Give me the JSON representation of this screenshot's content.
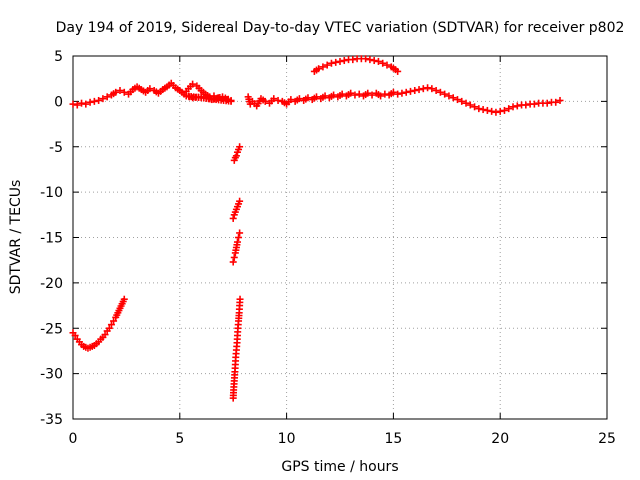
{
  "chart_data": {
    "type": "scatter",
    "title": "Day 194 of 2019, Sidereal Day-to-day VTEC variation (SDTVAR) for receiver p802",
    "xlabel": "GPS time / hours",
    "ylabel": "SDTVAR / TECUs",
    "xlim": [
      0,
      25
    ],
    "ylim": [
      -35,
      5
    ],
    "xticks": [
      0,
      5,
      10,
      15,
      20,
      25
    ],
    "yticks": [
      5,
      0,
      -5,
      -10,
      -15,
      -20,
      -25,
      -30,
      -35
    ],
    "grid": true,
    "marker": "plus",
    "color": "#ff0000",
    "segments": [
      {
        "name": "early-dip",
        "points": [
          [
            0.0,
            -25.5
          ],
          [
            0.1,
            -25.8
          ],
          [
            0.2,
            -26.2
          ],
          [
            0.3,
            -26.5
          ],
          [
            0.4,
            -26.8
          ],
          [
            0.5,
            -27.0
          ],
          [
            0.6,
            -27.1
          ],
          [
            0.7,
            -27.2
          ],
          [
            0.8,
            -27.1
          ],
          [
            0.9,
            -27.0
          ],
          [
            1.0,
            -26.9
          ],
          [
            1.1,
            -26.7
          ],
          [
            1.2,
            -26.5
          ],
          [
            1.3,
            -26.2
          ],
          [
            1.4,
            -26.0
          ],
          [
            1.5,
            -25.7
          ],
          [
            1.6,
            -25.3
          ],
          [
            1.7,
            -25.0
          ],
          [
            1.8,
            -24.6
          ],
          [
            1.9,
            -24.2
          ],
          [
            2.0,
            -23.8
          ],
          [
            2.1,
            -23.3
          ],
          [
            2.2,
            -22.8
          ],
          [
            2.3,
            -22.3
          ],
          [
            2.4,
            -21.8
          ]
        ]
      },
      {
        "name": "morning-band",
        "points": [
          [
            0.0,
            -0.3
          ],
          [
            0.2,
            -0.4
          ],
          [
            0.4,
            -0.2
          ],
          [
            0.6,
            -0.3
          ],
          [
            0.8,
            -0.1
          ],
          [
            1.0,
            0.0
          ],
          [
            1.2,
            0.1
          ],
          [
            1.4,
            0.3
          ],
          [
            1.6,
            0.5
          ],
          [
            1.8,
            0.7
          ],
          [
            2.0,
            1.0
          ],
          [
            2.2,
            1.2
          ],
          [
            2.4,
            1.0
          ],
          [
            2.6,
            0.8
          ],
          [
            2.8,
            1.3
          ],
          [
            3.0,
            1.6
          ],
          [
            3.2,
            1.3
          ],
          [
            3.4,
            1.0
          ],
          [
            3.6,
            1.4
          ],
          [
            3.8,
            1.2
          ],
          [
            4.0,
            0.9
          ],
          [
            4.2,
            1.3
          ],
          [
            4.4,
            1.6
          ],
          [
            4.6,
            2.0
          ],
          [
            4.8,
            1.5
          ],
          [
            5.0,
            1.2
          ],
          [
            5.2,
            0.8
          ],
          [
            5.4,
            1.4
          ],
          [
            5.6,
            1.9
          ],
          [
            5.8,
            1.7
          ],
          [
            6.0,
            1.2
          ],
          [
            6.2,
            0.8
          ],
          [
            6.4,
            0.5
          ],
          [
            6.6,
            0.6
          ],
          [
            6.8,
            0.4
          ],
          [
            7.0,
            0.3
          ],
          [
            7.2,
            0.2
          ],
          [
            7.4,
            0.0
          ],
          [
            5.3,
            0.6
          ],
          [
            5.6,
            0.4
          ],
          [
            6.0,
            0.5
          ],
          [
            6.5,
            0.2
          ],
          [
            7.0,
            0.5
          ],
          [
            7.4,
            0.1
          ]
        ]
      },
      {
        "name": "steep-1",
        "points": [
          [
            7.55,
            -6.5
          ],
          [
            7.6,
            -6.2
          ],
          [
            7.65,
            -6.0
          ],
          [
            7.7,
            -5.6
          ],
          [
            7.75,
            -5.3
          ],
          [
            7.8,
            -5.0
          ]
        ]
      },
      {
        "name": "steep-2",
        "points": [
          [
            7.5,
            -12.9
          ],
          [
            7.55,
            -12.5
          ],
          [
            7.6,
            -12.2
          ],
          [
            7.65,
            -11.9
          ],
          [
            7.7,
            -11.6
          ],
          [
            7.75,
            -11.3
          ],
          [
            7.8,
            -11.0
          ]
        ]
      },
      {
        "name": "steep-3",
        "points": [
          [
            7.5,
            -17.7
          ],
          [
            7.55,
            -17.2
          ],
          [
            7.6,
            -16.7
          ],
          [
            7.65,
            -16.1
          ],
          [
            7.7,
            -15.5
          ],
          [
            7.75,
            -15.0
          ],
          [
            7.8,
            -14.5
          ]
        ]
      },
      {
        "name": "steep-4",
        "points": [
          [
            7.5,
            -32.7
          ],
          [
            7.52,
            -31.8
          ],
          [
            7.55,
            -30.8
          ],
          [
            7.58,
            -29.8
          ],
          [
            7.6,
            -29.0
          ],
          [
            7.62,
            -28.2
          ],
          [
            7.65,
            -27.4
          ],
          [
            7.68,
            -26.6
          ],
          [
            7.7,
            -25.8
          ],
          [
            7.72,
            -25.0
          ],
          [
            7.75,
            -24.2
          ],
          [
            7.78,
            -23.3
          ],
          [
            7.8,
            -22.5
          ],
          [
            7.82,
            -21.8
          ]
        ]
      },
      {
        "name": "midday-band",
        "points": [
          [
            8.2,
            0.5
          ],
          [
            8.3,
            -0.3
          ],
          [
            8.4,
            0.0
          ],
          [
            8.6,
            -0.5
          ],
          [
            8.8,
            0.3
          ],
          [
            9.0,
            0.0
          ],
          [
            9.2,
            -0.2
          ],
          [
            9.4,
            0.3
          ],
          [
            9.6,
            0.1
          ],
          [
            9.8,
            0.0
          ],
          [
            10.0,
            -0.3
          ],
          [
            10.2,
            0.2
          ],
          [
            10.4,
            0.0
          ],
          [
            10.6,
            0.3
          ],
          [
            10.8,
            0.1
          ],
          [
            11.0,
            0.4
          ],
          [
            11.2,
            0.2
          ],
          [
            11.4,
            0.5
          ],
          [
            11.6,
            0.3
          ],
          [
            11.8,
            0.6
          ],
          [
            12.0,
            0.4
          ],
          [
            12.2,
            0.7
          ],
          [
            12.4,
            0.5
          ],
          [
            12.6,
            0.8
          ],
          [
            12.8,
            0.6
          ],
          [
            13.0,
            0.9
          ],
          [
            13.2,
            0.7
          ],
          [
            13.4,
            0.8
          ],
          [
            13.6,
            0.6
          ],
          [
            13.8,
            0.9
          ],
          [
            14.0,
            0.7
          ],
          [
            14.2,
            0.9
          ],
          [
            14.4,
            0.6
          ],
          [
            14.6,
            0.8
          ],
          [
            14.8,
            0.7
          ],
          [
            15.0,
            1.0
          ],
          [
            15.2,
            0.8
          ],
          [
            15.4,
            0.9
          ],
          [
            15.6,
            1.0
          ],
          [
            15.8,
            1.1
          ],
          [
            16.0,
            1.2
          ],
          [
            16.2,
            1.3
          ],
          [
            16.4,
            1.4
          ],
          [
            16.6,
            1.5
          ],
          [
            16.8,
            1.4
          ],
          [
            17.0,
            1.2
          ],
          [
            17.2,
            1.0
          ],
          [
            17.4,
            0.8
          ],
          [
            17.6,
            0.6
          ],
          [
            17.8,
            0.4
          ],
          [
            18.0,
            0.2
          ],
          [
            18.2,
            0.0
          ],
          [
            18.4,
            -0.2
          ],
          [
            18.6,
            -0.4
          ],
          [
            18.8,
            -0.6
          ],
          [
            19.0,
            -0.8
          ],
          [
            19.2,
            -0.9
          ],
          [
            19.4,
            -1.0
          ],
          [
            19.6,
            -1.1
          ],
          [
            19.8,
            -1.2
          ],
          [
            20.0,
            -1.1
          ],
          [
            20.2,
            -1.0
          ],
          [
            20.4,
            -0.8
          ],
          [
            20.6,
            -0.6
          ],
          [
            20.8,
            -0.5
          ],
          [
            21.0,
            -0.4
          ],
          [
            21.2,
            -0.4
          ],
          [
            21.4,
            -0.3
          ],
          [
            21.6,
            -0.3
          ],
          [
            21.8,
            -0.2
          ],
          [
            22.0,
            -0.2
          ],
          [
            22.2,
            -0.2
          ],
          [
            22.4,
            -0.1
          ],
          [
            22.6,
            -0.1
          ],
          [
            22.8,
            0.1
          ]
        ]
      },
      {
        "name": "afternoon-arc",
        "points": [
          [
            11.3,
            3.3
          ],
          [
            11.5,
            3.6
          ],
          [
            11.7,
            3.8
          ],
          [
            11.9,
            4.0
          ],
          [
            12.1,
            4.2
          ],
          [
            12.3,
            4.3
          ],
          [
            12.5,
            4.4
          ],
          [
            12.7,
            4.5
          ],
          [
            12.9,
            4.6
          ],
          [
            13.1,
            4.6
          ],
          [
            13.3,
            4.7
          ],
          [
            13.5,
            4.7
          ],
          [
            13.7,
            4.7
          ],
          [
            13.9,
            4.6
          ],
          [
            14.1,
            4.5
          ],
          [
            14.3,
            4.4
          ],
          [
            14.5,
            4.2
          ],
          [
            14.7,
            4.0
          ],
          [
            14.9,
            3.8
          ],
          [
            15.1,
            3.5
          ],
          [
            15.2,
            3.3
          ]
        ]
      }
    ]
  }
}
